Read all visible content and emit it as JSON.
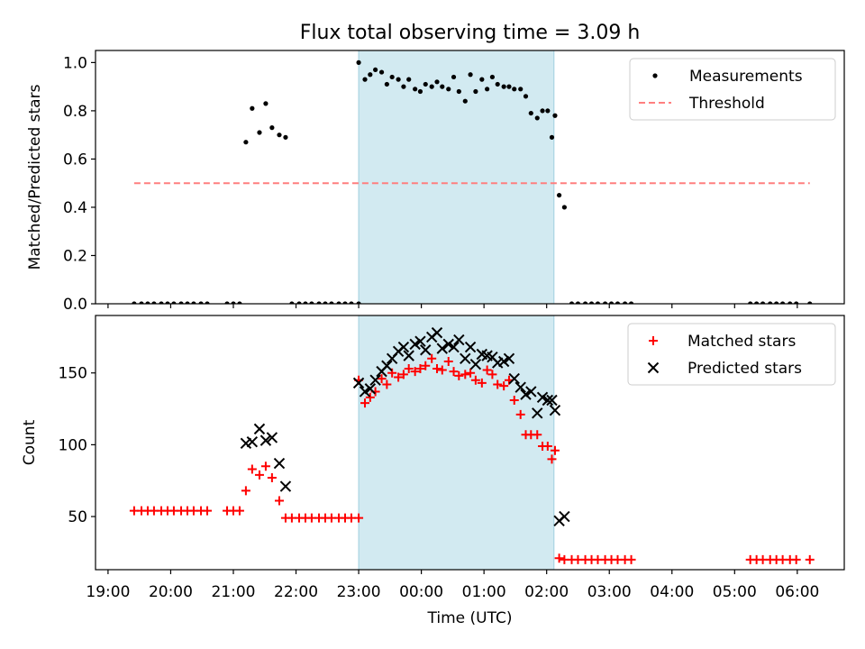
{
  "title": "Flux total observing time = 3.09 h",
  "chart_data": [
    {
      "type": "scatter",
      "panel": "top",
      "title": "Flux total observing time = 3.09 h",
      "xlabel": "",
      "ylabel": "Matched/Predicted stars",
      "ylim": [
        0,
        1.05
      ],
      "yticks": [
        "0.0",
        "0.2",
        "0.4",
        "0.6",
        "0.8",
        "1.0"
      ],
      "xlim_hours": [
        18.8,
        30.75
      ],
      "observing_window": {
        "start": "23:00",
        "end": "02:07",
        "color": "#add8e6"
      },
      "legend_position": "upper right",
      "legend": [
        "Measurements",
        "Threshold"
      ],
      "series": [
        {
          "name": "Measurements",
          "marker": "dot",
          "color": "#000000",
          "points": [
            [
              "19:25",
              0
            ],
            [
              "19:32",
              0
            ],
            [
              "19:38",
              0
            ],
            [
              "19:44",
              0
            ],
            [
              "19:51",
              0
            ],
            [
              "19:57",
              0
            ],
            [
              "20:03",
              0
            ],
            [
              "20:10",
              0
            ],
            [
              "20:16",
              0
            ],
            [
              "20:22",
              0
            ],
            [
              "20:29",
              0
            ],
            [
              "20:35",
              0
            ],
            [
              "20:54",
              0
            ],
            [
              "21:00",
              0
            ],
            [
              "21:06",
              0
            ],
            [
              "21:12",
              0.67
            ],
            [
              "21:18",
              0.81
            ],
            [
              "21:25",
              0.71
            ],
            [
              "21:31",
              0.83
            ],
            [
              "21:37",
              0.73
            ],
            [
              "21:44",
              0.7
            ],
            [
              "21:50",
              0.69
            ],
            [
              "21:56",
              0
            ],
            [
              "22:03",
              0
            ],
            [
              "22:09",
              0
            ],
            [
              "22:15",
              0
            ],
            [
              "22:22",
              0
            ],
            [
              "22:28",
              0
            ],
            [
              "22:34",
              0
            ],
            [
              "22:41",
              0
            ],
            [
              "22:47",
              0
            ],
            [
              "22:53",
              0
            ],
            [
              "23:00",
              0
            ],
            [
              "23:00",
              1.0
            ],
            [
              "23:06",
              0.93
            ],
            [
              "23:11",
              0.95
            ],
            [
              "23:16",
              0.97
            ],
            [
              "23:22",
              0.96
            ],
            [
              "23:27",
              0.91
            ],
            [
              "23:32",
              0.94
            ],
            [
              "23:38",
              0.93
            ],
            [
              "23:43",
              0.9
            ],
            [
              "23:48",
              0.93
            ],
            [
              "23:54",
              0.89
            ],
            [
              "23:59",
              0.88
            ],
            [
              "00:04",
              0.91
            ],
            [
              "00:10",
              0.9
            ],
            [
              "00:15",
              0.92
            ],
            [
              "00:20",
              0.9
            ],
            [
              "00:26",
              0.89
            ],
            [
              "00:31",
              0.94
            ],
            [
              "00:36",
              0.88
            ],
            [
              "00:42",
              0.84
            ],
            [
              "00:47",
              0.95
            ],
            [
              "00:52",
              0.88
            ],
            [
              "00:58",
              0.93
            ],
            [
              "01:03",
              0.89
            ],
            [
              "01:08",
              0.94
            ],
            [
              "01:13",
              0.91
            ],
            [
              "01:19",
              0.9
            ],
            [
              "01:24",
              0.9
            ],
            [
              "01:29",
              0.89
            ],
            [
              "01:35",
              0.89
            ],
            [
              "01:40",
              0.86
            ],
            [
              "01:45",
              0.79
            ],
            [
              "01:51",
              0.77
            ],
            [
              "01:56",
              0.8
            ],
            [
              "02:01",
              0.8
            ],
            [
              "02:05",
              0.69
            ],
            [
              "02:08",
              0.78
            ],
            [
              "02:12",
              0.45
            ],
            [
              "02:17",
              0.4
            ],
            [
              "02:24",
              0
            ],
            [
              "02:30",
              0
            ],
            [
              "02:37",
              0
            ],
            [
              "02:43",
              0
            ],
            [
              "02:49",
              0
            ],
            [
              "02:56",
              0
            ],
            [
              "03:02",
              0
            ],
            [
              "03:08",
              0
            ],
            [
              "03:15",
              0
            ],
            [
              "03:21",
              0
            ],
            [
              "05:15",
              0
            ],
            [
              "05:21",
              0
            ],
            [
              "05:27",
              0
            ],
            [
              "05:34",
              0
            ],
            [
              "05:40",
              0
            ],
            [
              "05:46",
              0
            ],
            [
              "05:53",
              0
            ],
            [
              "05:59",
              0
            ],
            [
              "06:12",
              0
            ]
          ]
        },
        {
          "name": "Threshold",
          "marker": "dashed-line",
          "color": "#ff7f7f",
          "points": [
            [
              "19:25",
              0.5
            ],
            [
              "06:12",
              0.5
            ]
          ]
        }
      ]
    },
    {
      "type": "scatter",
      "panel": "bottom",
      "xlabel": "Time (UTC)",
      "ylabel": "Count",
      "ylim": [
        13,
        190
      ],
      "yticks": [
        "50",
        "100",
        "150"
      ],
      "xticks": [
        "19:00",
        "20:00",
        "21:00",
        "22:00",
        "23:00",
        "00:00",
        "01:00",
        "02:00",
        "03:00",
        "04:00",
        "05:00",
        "06:00"
      ],
      "xlim_hours": [
        18.8,
        30.75
      ],
      "observing_window": {
        "start": "23:00",
        "end": "02:07",
        "color": "#add8e6"
      },
      "legend_position": "upper right",
      "legend": [
        "Matched stars",
        "Predicted stars"
      ],
      "series": [
        {
          "name": "Matched stars",
          "marker": "plus",
          "color": "#ff0000",
          "points": [
            [
              "19:25",
              54
            ],
            [
              "19:32",
              54
            ],
            [
              "19:38",
              54
            ],
            [
              "19:44",
              54
            ],
            [
              "19:51",
              54
            ],
            [
              "19:57",
              54
            ],
            [
              "20:03",
              54
            ],
            [
              "20:10",
              54
            ],
            [
              "20:16",
              54
            ],
            [
              "20:22",
              54
            ],
            [
              "20:29",
              54
            ],
            [
              "20:35",
              54
            ],
            [
              "20:54",
              54
            ],
            [
              "21:00",
              54
            ],
            [
              "21:06",
              54
            ],
            [
              "21:12",
              68
            ],
            [
              "21:18",
              83
            ],
            [
              "21:25",
              79
            ],
            [
              "21:31",
              85
            ],
            [
              "21:37",
              77
            ],
            [
              "21:44",
              61
            ],
            [
              "21:50",
              49
            ],
            [
              "21:56",
              49
            ],
            [
              "22:03",
              49
            ],
            [
              "22:09",
              49
            ],
            [
              "22:15",
              49
            ],
            [
              "22:22",
              49
            ],
            [
              "22:28",
              49
            ],
            [
              "22:34",
              49
            ],
            [
              "22:41",
              49
            ],
            [
              "22:47",
              49
            ],
            [
              "22:53",
              49
            ],
            [
              "23:00",
              49
            ],
            [
              "23:00",
              145
            ],
            [
              "23:06",
              129
            ],
            [
              "23:11",
              133
            ],
            [
              "23:16",
              137
            ],
            [
              "23:22",
              146
            ],
            [
              "23:27",
              142
            ],
            [
              "23:32",
              150
            ],
            [
              "23:38",
              147
            ],
            [
              "23:43",
              149
            ],
            [
              "23:48",
              153
            ],
            [
              "23:54",
              151
            ],
            [
              "23:59",
              153
            ],
            [
              "00:04",
              155
            ],
            [
              "00:10",
              160
            ],
            [
              "00:15",
              153
            ],
            [
              "00:20",
              152
            ],
            [
              "00:26",
              158
            ],
            [
              "00:31",
              151
            ],
            [
              "00:36",
              148
            ],
            [
              "00:42",
              149
            ],
            [
              "00:47",
              150
            ],
            [
              "00:52",
              145
            ],
            [
              "00:58",
              143
            ],
            [
              "01:03",
              152
            ],
            [
              "01:08",
              149
            ],
            [
              "01:13",
              142
            ],
            [
              "01:19",
              141
            ],
            [
              "01:24",
              145
            ],
            [
              "01:29",
              131
            ],
            [
              "01:35",
              121
            ],
            [
              "01:40",
              107
            ],
            [
              "01:45",
              107
            ],
            [
              "01:51",
              107
            ],
            [
              "01:56",
              99
            ],
            [
              "02:01",
              99
            ],
            [
              "02:05",
              90
            ],
            [
              "02:08",
              96
            ],
            [
              "02:12",
              21
            ],
            [
              "02:17",
              20
            ],
            [
              "02:24",
              20
            ],
            [
              "02:30",
              20
            ],
            [
              "02:37",
              20
            ],
            [
              "02:43",
              20
            ],
            [
              "02:49",
              20
            ],
            [
              "02:56",
              20
            ],
            [
              "03:02",
              20
            ],
            [
              "03:08",
              20
            ],
            [
              "03:15",
              20
            ],
            [
              "03:21",
              20
            ],
            [
              "05:15",
              20
            ],
            [
              "05:21",
              20
            ],
            [
              "05:27",
              20
            ],
            [
              "05:34",
              20
            ],
            [
              "05:40",
              20
            ],
            [
              "05:46",
              20
            ],
            [
              "05:53",
              20
            ],
            [
              "05:59",
              20
            ],
            [
              "06:12",
              20
            ]
          ]
        },
        {
          "name": "Predicted stars",
          "marker": "x",
          "color": "#000000",
          "points": [
            [
              "21:12",
              101
            ],
            [
              "21:18",
              102
            ],
            [
              "21:25",
              111
            ],
            [
              "21:31",
              103
            ],
            [
              "21:37",
              105
            ],
            [
              "21:44",
              87
            ],
            [
              "21:50",
              71
            ],
            [
              "23:00",
              143
            ],
            [
              "23:06",
              137
            ],
            [
              "23:11",
              139
            ],
            [
              "23:16",
              145
            ],
            [
              "23:22",
              151
            ],
            [
              "23:27",
              155
            ],
            [
              "23:32",
              160
            ],
            [
              "23:38",
              165
            ],
            [
              "23:43",
              168
            ],
            [
              "23:48",
              162
            ],
            [
              "23:54",
              170
            ],
            [
              "23:59",
              172
            ],
            [
              "00:04",
              166
            ],
            [
              "00:10",
              175
            ],
            [
              "00:15",
              178
            ],
            [
              "00:20",
              167
            ],
            [
              "00:26",
              170
            ],
            [
              "00:31",
              168
            ],
            [
              "00:36",
              173
            ],
            [
              "00:42",
              160
            ],
            [
              "00:47",
              168
            ],
            [
              "00:52",
              156
            ],
            [
              "00:58",
              163
            ],
            [
              "01:03",
              162
            ],
            [
              "01:08",
              161
            ],
            [
              "01:13",
              157
            ],
            [
              "01:19",
              158
            ],
            [
              "01:24",
              160
            ],
            [
              "01:29",
              146
            ],
            [
              "01:35",
              140
            ],
            [
              "01:40",
              135
            ],
            [
              "01:45",
              137
            ],
            [
              "01:51",
              122
            ],
            [
              "01:56",
              133
            ],
            [
              "02:01",
              131
            ],
            [
              "02:05",
              131
            ],
            [
              "02:08",
              124
            ],
            [
              "02:12",
              47
            ],
            [
              "02:17",
              50
            ]
          ]
        }
      ]
    }
  ]
}
